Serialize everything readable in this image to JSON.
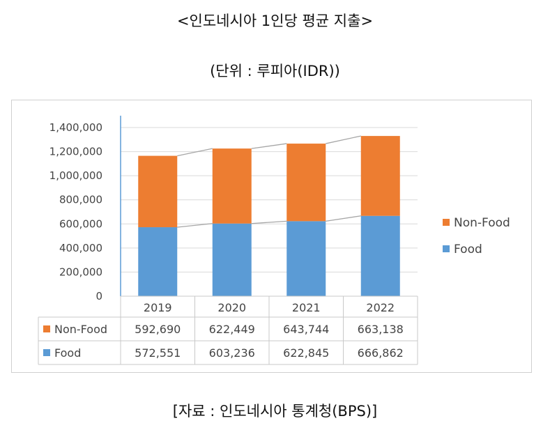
{
  "header": {
    "title": "<인도네시아 1인당 평균 지출>",
    "unit": "(단위 : 루피아(IDR))"
  },
  "footer": {
    "source": "[자료 : 인도네시아 통계청(BPS)]"
  },
  "colors": {
    "non_food": "#ED7D31",
    "food": "#5B9BD5",
    "axis": "#5B9BD5",
    "grid": "#D9D9D9",
    "trend": "#A6A6A6"
  },
  "chart_data": {
    "type": "bar",
    "stacked": true,
    "categories": [
      "2019",
      "2020",
      "2021",
      "2022"
    ],
    "series": [
      {
        "name": "Food",
        "values": [
          572551,
          603236,
          622845,
          666862
        ],
        "color": "#5B9BD5"
      },
      {
        "name": "Non-Food",
        "values": [
          592690,
          622449,
          643744,
          663138
        ],
        "color": "#ED7D31"
      }
    ],
    "ylim": [
      0,
      1400000
    ],
    "yticks": [
      "0",
      "200,000",
      "400,000",
      "600,000",
      "800,000",
      "1,000,000",
      "1,200,000",
      "1,400,000"
    ],
    "grid": true,
    "legend": {
      "placement": "right",
      "entries": [
        "Non-Food",
        "Food"
      ]
    },
    "data_table": {
      "rows": [
        {
          "label": "Non-Food",
          "values": [
            "592,690",
            "622,449",
            "643,744",
            "663,138"
          ]
        },
        {
          "label": "Food",
          "values": [
            "572,551",
            "603,236",
            "622,845",
            "666,862"
          ]
        }
      ]
    },
    "series_lines": true
  }
}
